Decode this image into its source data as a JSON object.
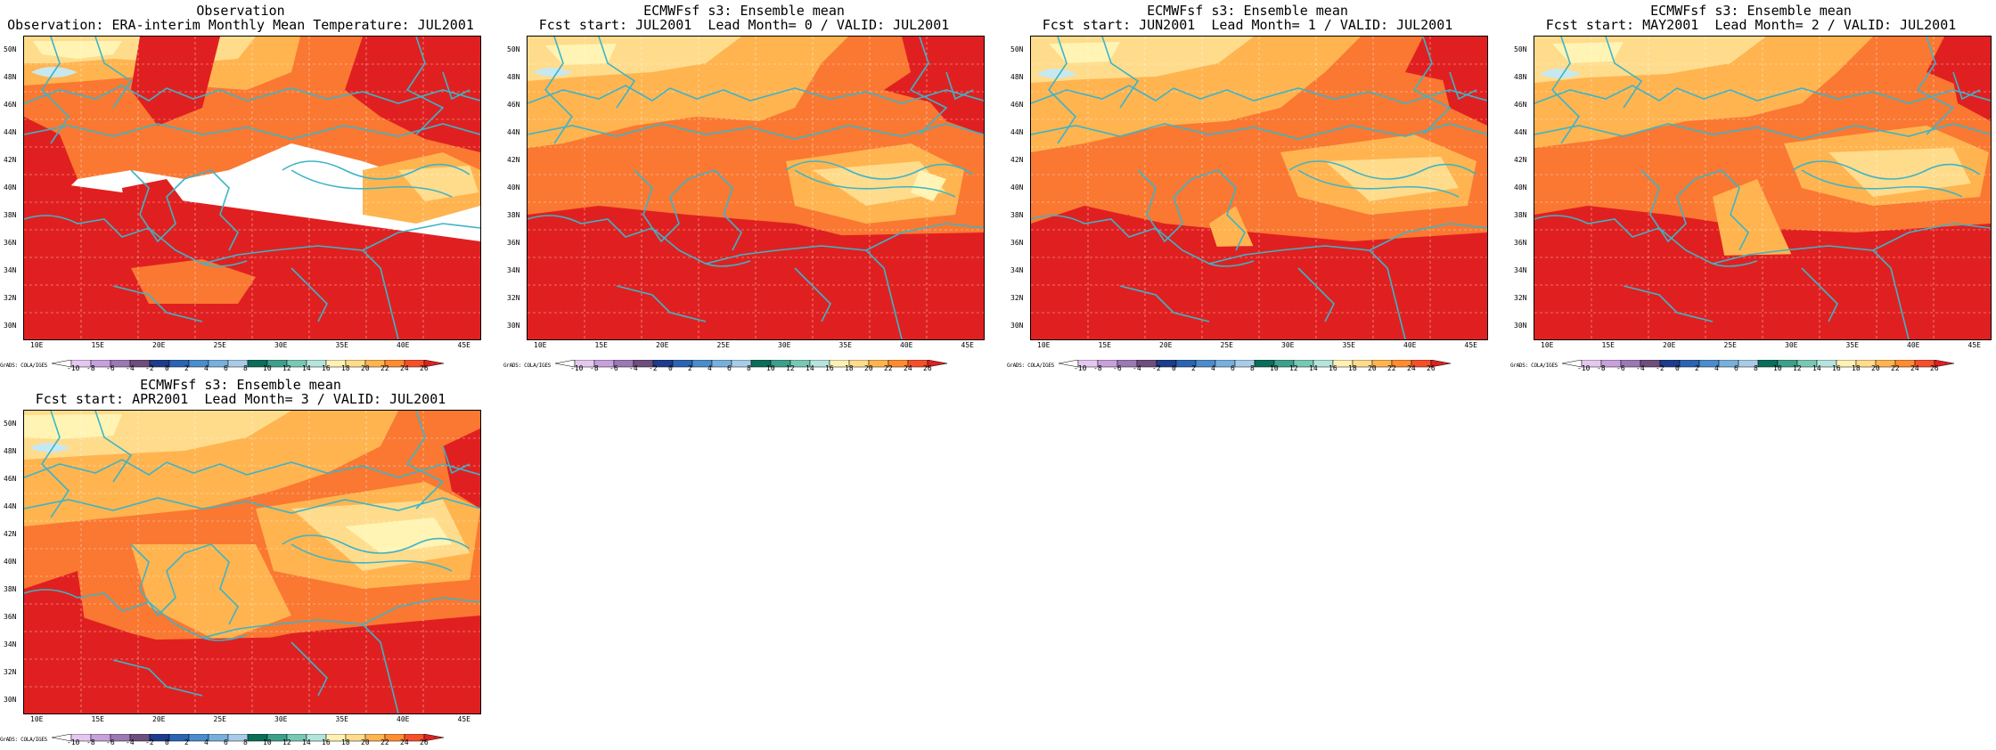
{
  "panels": [
    {
      "title1": "Observation",
      "title2": "Observation: ERA-interim Monthly Mean Temperature: JUL2001",
      "variant": 0
    },
    {
      "title1": "ECMWFsf s3: Ensemble mean",
      "title2": "Fcst start: JUL2001  Lead Month= 0 / VALID: JUL2001",
      "variant": 1
    },
    {
      "title1": "ECMWFsf s3: Ensemble mean",
      "title2": "Fcst start: JUN2001  Lead Month= 1 / VALID: JUL2001",
      "variant": 2
    },
    {
      "title1": "ECMWFsf s3: Ensemble mean",
      "title2": "Fcst start: MAY2001  Lead Month= 2 / VALID: JUL2001",
      "variant": 3
    },
    {
      "title1": "ECMWFsf s3: Ensemble mean",
      "title2": "Fcst start: APR2001  Lead Month= 3 / VALID: JUL2001",
      "variant": 4
    }
  ],
  "lat_labels": [
    "50N",
    "48N",
    "46N",
    "44N",
    "42N",
    "40N",
    "38N",
    "36N",
    "34N",
    "32N",
    "30N"
  ],
  "lon_labels": [
    "10E",
    "15E",
    "20E",
    "25E",
    "30E",
    "35E",
    "40E",
    "45E"
  ],
  "colorbar": {
    "label": "GrADS: COLA/IGES",
    "ticks": [
      "-10",
      "-8",
      "-6",
      "-4",
      "-2",
      "0",
      "2",
      "4",
      "6",
      "8",
      "10",
      "12",
      "14",
      "16",
      "18",
      "20",
      "22",
      "24",
      "26"
    ],
    "colors": [
      "#ffffff",
      "#e4c8f0",
      "#c8a0dc",
      "#9c78b4",
      "#6e4e7e",
      "#1e3c8c",
      "#2c64b4",
      "#4a8ccc",
      "#78b0dc",
      "#a8cce8",
      "#0a6e5a",
      "#3ca08c",
      "#78c8b4",
      "#b4e4dc",
      "#fff0b4",
      "#ffdc8c",
      "#ffb450",
      "#ff8c32",
      "#f5502a",
      "#e02020"
    ]
  },
  "colors": {
    "t_lt18": "#c8e8f0",
    "t_18_20": "#fff4b4",
    "t_20_22": "#ffdc8c",
    "t_22_24": "#ffb450",
    "t_24_26": "#fa7832",
    "t_gt26": "#e02020",
    "coast": "#3cb4c8",
    "grid": "#ffffff"
  }
}
